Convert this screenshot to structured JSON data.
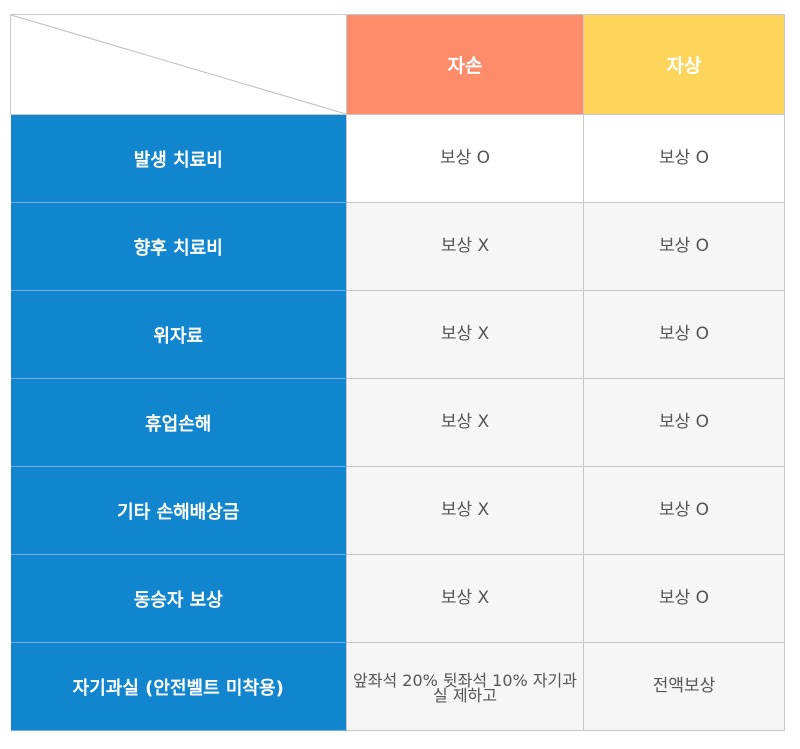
{
  "header": {
    "columns": [
      "자손",
      "자상"
    ]
  },
  "rows": [
    {
      "label": "발생 치료비",
      "self_damage": "보상 O",
      "self_injury": "보상 O"
    },
    {
      "label": "향후 치료비",
      "self_damage": "보상 X",
      "self_injury": "보상 O"
    },
    {
      "label": "위자료",
      "self_damage": "보상 X",
      "self_injury": "보상 O"
    },
    {
      "label": "휴업손해",
      "self_damage": "보상 X",
      "self_injury": "보상 O"
    },
    {
      "label": "기타 손해배상금",
      "self_damage": "보상 X",
      "self_injury": "보상 O"
    },
    {
      "label": "동승자 보상",
      "self_damage": "보상 X",
      "self_injury": "보상 O"
    },
    {
      "label": "자기과실 (안전벨트 미착용)",
      "self_damage": "앞좌석 20% 뒷좌석 10% 자기과실 제하고",
      "self_injury": "전액보상"
    }
  ],
  "colors": {
    "row_header_bg": "#1186cf",
    "self_damage_header_bg": "#fe8b69",
    "self_injury_header_bg": "#ffd45a",
    "cell_bg": "#f6f6f6",
    "border": "#c9c9c9"
  }
}
